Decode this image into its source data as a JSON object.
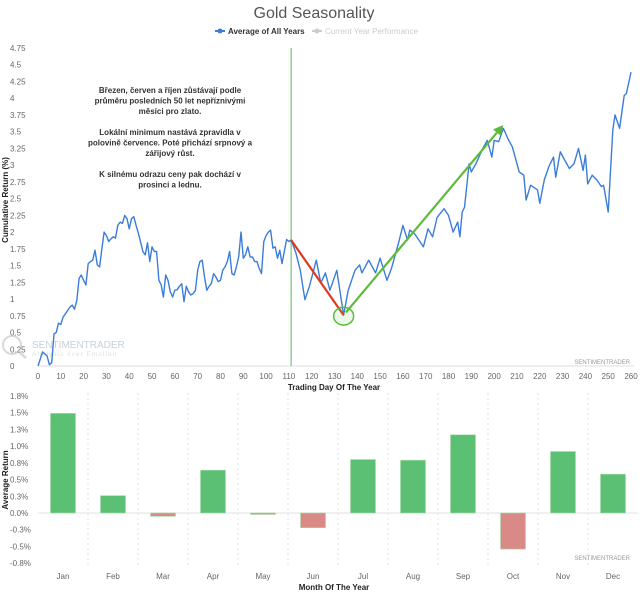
{
  "chart_data": [
    {
      "type": "line",
      "title": "Gold Seasonality",
      "legend": [
        {
          "name": "Average of All Years",
          "color": "#3b7dd8",
          "active": true
        },
        {
          "name": "Current Year Performance",
          "color": "#cccccc",
          "active": false
        }
      ],
      "legend_position": "top-center",
      "xlabel": "Trading Day Of The Year",
      "ylabel": "Cumulative Return (%)",
      "xlim": [
        0,
        260
      ],
      "ylim": [
        0,
        4.75
      ],
      "x_ticks": [
        "0",
        "10",
        "20",
        "30",
        "40",
        "50",
        "60",
        "70",
        "80",
        "90",
        "100",
        "110",
        "120",
        "130",
        "140",
        "150",
        "160",
        "170",
        "180",
        "190",
        "200",
        "210",
        "220",
        "230",
        "240",
        "250",
        "260"
      ],
      "y_ticks": [
        "0",
        "0.25",
        "0.5",
        "0.75",
        "1",
        "1.25",
        "1.5",
        "1.75",
        "2",
        "2.25",
        "2.5",
        "2.75",
        "3",
        "3.25",
        "3.5",
        "3.75",
        "4",
        "4.25",
        "4.5",
        "4.75"
      ],
      "grid": false,
      "series": [
        {
          "name": "Average of All Years",
          "color": "#3b7dd8",
          "x": [
            0,
            2,
            4,
            5,
            6,
            7,
            8,
            9,
            10,
            11,
            12,
            13,
            14,
            15,
            16,
            17,
            18,
            19,
            20,
            21,
            22,
            23,
            24,
            25,
            26,
            27,
            28,
            29,
            30,
            31,
            32,
            33,
            34,
            35,
            36,
            37,
            38,
            39,
            40,
            41,
            42,
            43,
            44,
            45,
            46,
            47,
            48,
            49,
            50,
            51,
            52,
            53,
            54,
            55,
            56,
            57,
            58,
            59,
            60,
            61,
            62,
            63,
            64,
            65,
            66,
            67,
            68,
            69,
            70,
            71,
            72,
            73,
            74,
            75,
            76,
            77,
            78,
            79,
            80,
            81,
            82,
            83,
            84,
            85,
            86,
            87,
            88,
            89,
            90,
            91,
            92,
            93,
            94,
            95,
            96,
            97,
            98,
            99,
            100,
            101,
            102,
            103,
            104,
            105,
            106,
            107,
            108,
            109,
            110,
            111,
            113,
            115,
            117,
            119,
            122,
            124,
            126,
            128,
            131,
            134,
            136,
            139,
            141,
            142,
            145,
            148,
            150,
            153,
            155,
            158,
            160,
            162,
            163,
            165,
            167,
            169,
            171,
            173,
            175,
            178,
            180,
            182,
            184,
            185,
            186,
            187,
            189,
            190,
            192,
            195,
            197,
            199,
            200,
            202,
            204,
            206,
            208,
            211,
            213,
            214,
            216,
            219,
            220,
            222,
            224,
            226,
            227,
            229,
            231,
            233,
            235,
            237,
            239,
            240,
            241,
            243,
            245,
            247,
            248,
            250,
            252,
            253,
            255,
            257,
            258,
            260
          ],
          "y": [
            0,
            0.21,
            0.15,
            0.02,
            0.05,
            0.48,
            0.5,
            0.64,
            0.62,
            0.73,
            0.78,
            0.83,
            0.88,
            0.91,
            0.85,
            0.98,
            1.31,
            1.36,
            1.28,
            1.21,
            1.53,
            1.56,
            1.58,
            1.73,
            1.51,
            1.48,
            1.75,
            2.0,
            1.95,
            1.86,
            1.9,
            1.93,
            1.91,
            2.1,
            2.15,
            2.13,
            2.25,
            2.2,
            2.05,
            2.2,
            2.23,
            2.1,
            1.98,
            1.85,
            1.71,
            1.66,
            1.84,
            1.56,
            1.78,
            1.71,
            1.71,
            1.28,
            1.21,
            1.03,
            1.36,
            1.28,
            1.11,
            1.03,
            1.13,
            1.14,
            1.19,
            1.23,
            0.96,
            1.19,
            1.11,
            1.06,
            1.08,
            1.13,
            1.43,
            1.56,
            1.58,
            1.33,
            1.13,
            1.19,
            1.23,
            1.38,
            1.33,
            1.26,
            1.28,
            1.43,
            1.48,
            1.56,
            1.71,
            1.38,
            1.36,
            1.48,
            1.63,
            2.0,
            1.61,
            1.66,
            1.78,
            1.63,
            1.63,
            1.56,
            1.56,
            1.46,
            1.38,
            1.86,
            1.95,
            2.0,
            2.03,
            1.76,
            1.78,
            1.61,
            1.73,
            1.53,
            1.71,
            1.89,
            1.86,
            1.88,
            1.7,
            1.43,
            0.99,
            1.19,
            1.58,
            1.24,
            1.39,
            1.13,
            1.43,
            0.76,
            1.13,
            1.43,
            1.51,
            1.39,
            1.58,
            1.39,
            1.61,
            1.28,
            1.46,
            1.83,
            2.1,
            1.88,
            2.03,
            1.98,
            1.88,
            1.78,
            2.05,
            1.93,
            2.22,
            2.35,
            2.25,
            2.0,
            2.15,
            1.93,
            2.3,
            2.37,
            3.02,
            2.9,
            3.02,
            3.25,
            3.37,
            3.12,
            3.37,
            3.35,
            3.55,
            3.4,
            3.27,
            2.9,
            2.85,
            2.48,
            2.7,
            2.63,
            2.43,
            2.78,
            2.98,
            3.12,
            2.82,
            3.2,
            3.07,
            2.95,
            3.02,
            3.25,
            2.92,
            3.15,
            2.72,
            2.85,
            2.78,
            2.68,
            2.7,
            2.3,
            3.52,
            3.75,
            3.55,
            4.04,
            4.07,
            4.39
          ]
        }
      ],
      "annotations": {
        "vertical_line_day": 111,
        "vertical_line_color": "#8fd08f",
        "decline_line": {
          "from": [
            111,
            1.88
          ],
          "to": [
            134,
            0.76
          ],
          "color": "#e03a1e"
        },
        "rise_arrow": {
          "from": [
            135,
            0.8
          ],
          "to": [
            204,
            3.6
          ],
          "color": "#5dbb3c"
        },
        "low_circle": {
          "at": [
            134,
            0.76
          ],
          "color": "#5dbb3c"
        },
        "note_lines": [
          "Březen, červen a říjen zůstávají podle",
          "průměru posledních 50 let nepříznivými",
          "měsíci pro zlato.",
          "",
          "Lokální minimum nastává zpravidla v",
          "polovině července. Poté přichází srpnový a",
          "zářijový růst.",
          "",
          "K silnému odrazu ceny pak dochází v",
          "prosinci a lednu."
        ]
      },
      "watermark": "SENTIMENTRADER",
      "watermark_logo": {
        "name": "SENTIMENTRADER",
        "tagline": "Analysis over Emotion"
      }
    },
    {
      "type": "bar",
      "xlabel": "Month Of The Year",
      "ylabel": "Average Return",
      "categories": [
        "Jan",
        "Feb",
        "Mar",
        "Apr",
        "May",
        "Jun",
        "Jul",
        "Aug",
        "Sep",
        "Oct",
        "Nov",
        "Dec"
      ],
      "values": [
        1.49,
        0.26,
        -0.05,
        0.64,
        -0.01,
        -0.22,
        0.8,
        0.79,
        1.17,
        -0.54,
        0.92,
        0.58
      ],
      "unit": "%",
      "ylim": [
        -0.75,
        1.75
      ],
      "y_ticks": [
        "1.8%",
        "1.5%",
        "1.3%",
        "1.0%",
        "0.8%",
        "0.5%",
        "0.3%",
        "0.0%",
        "-0.3%",
        "-0.5%",
        "-0.8%"
      ],
      "positive_color": "#5bbf74",
      "negative_color": "#d98a86",
      "grid": "vertical-dotted",
      "watermark": "SENTIMENTRADER"
    }
  ]
}
